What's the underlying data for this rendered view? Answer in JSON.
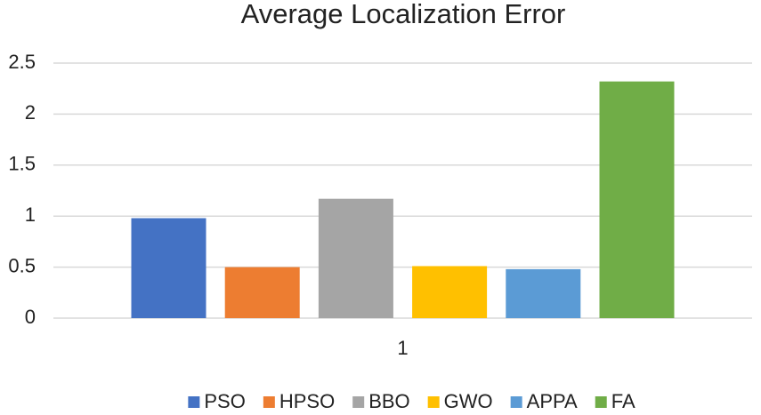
{
  "chart_data": {
    "type": "bar",
    "title": "Average Localization Error",
    "categories": [
      "1"
    ],
    "series": [
      {
        "name": "PSO",
        "color": "#4472c4",
        "values": [
          0.98
        ]
      },
      {
        "name": "HPSO",
        "color": "#ed7d31",
        "values": [
          0.5
        ]
      },
      {
        "name": "BBO",
        "color": "#a5a5a5",
        "values": [
          1.17
        ]
      },
      {
        "name": "GWO",
        "color": "#ffc000",
        "values": [
          0.51
        ]
      },
      {
        "name": "APPA",
        "color": "#5b9bd5",
        "values": [
          0.48
        ]
      },
      {
        "name": "FA",
        "color": "#70ad47",
        "values": [
          2.32
        ]
      }
    ],
    "ylim": [
      0,
      2.5
    ],
    "yticks": [
      0,
      0.5,
      1,
      1.5,
      2,
      2.5
    ],
    "grid": true,
    "legend": "bottom"
  }
}
